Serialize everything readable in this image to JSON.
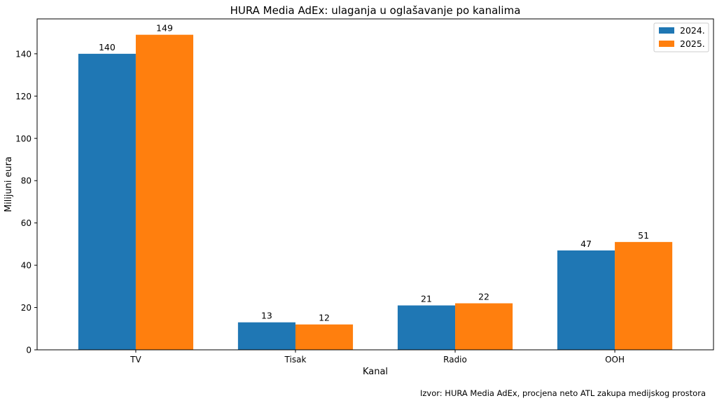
{
  "chart_data": {
    "type": "bar",
    "title": "HURA Media AdEx: ulaganja u oglašavanje po kanalima",
    "xlabel": "Kanal",
    "ylabel": "Milijuni eura",
    "categories": [
      "TV",
      "Tisak",
      "Radio",
      "OOH"
    ],
    "series": [
      {
        "name": "2024.",
        "values": [
          140,
          13,
          21,
          47
        ],
        "color": "#1f77b4"
      },
      {
        "name": "2025.",
        "values": [
          149,
          12,
          22,
          51
        ],
        "color": "#ff7f0e"
      }
    ],
    "ylim": [
      0,
      156.5
    ],
    "yticks": [
      0,
      20,
      40,
      60,
      80,
      100,
      120,
      140
    ],
    "grid": false,
    "legend_position": "top-right",
    "data_labels": true
  },
  "source_note": "Izvor: HURA Media AdEx, procjena neto ATL zakupa medijskog prostora"
}
